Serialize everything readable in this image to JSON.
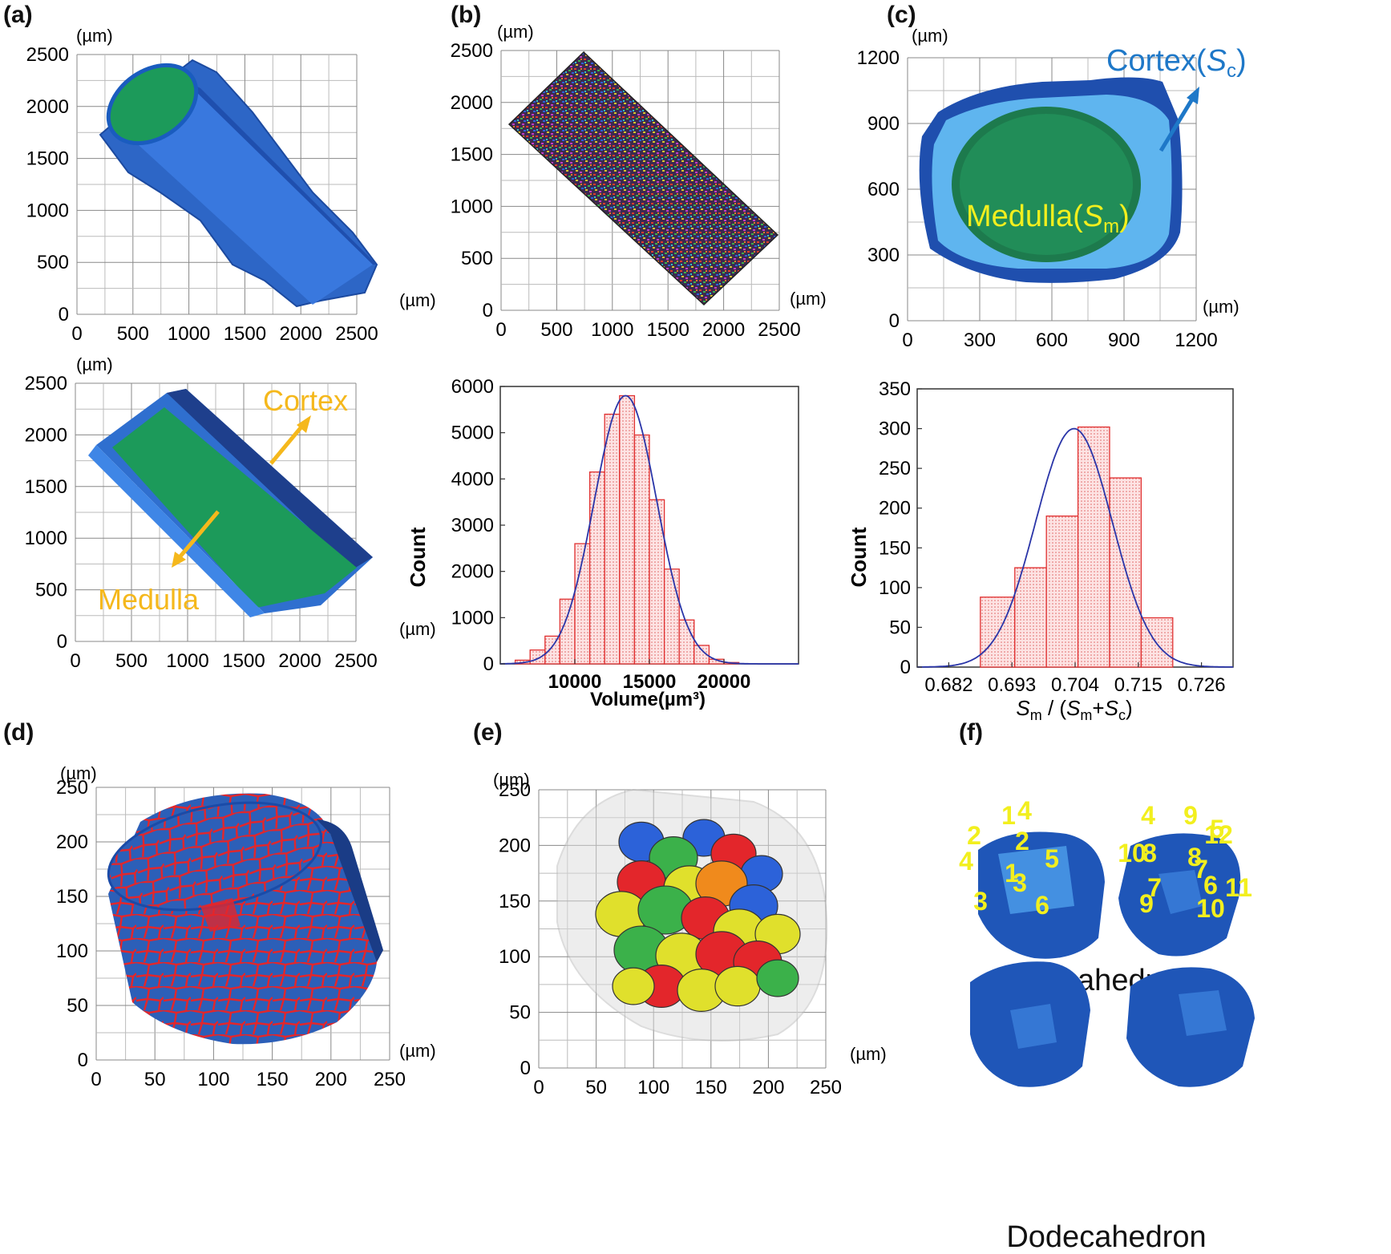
{
  "panels": [
    {
      "label": "(a)"
    },
    {
      "label": "(b)"
    },
    {
      "label": "(c)"
    },
    {
      "label": "(d)"
    },
    {
      "label": "(e)"
    },
    {
      "label": "(f)"
    }
  ],
  "units": {
    "um": "(µm)"
  },
  "a_top": {
    "xticks": [
      "0",
      "500",
      "1000",
      "1500",
      "2000",
      "2500"
    ],
    "yticks": [
      "2500",
      "2000",
      "1500",
      "1000",
      "500",
      "0"
    ],
    "colors": {
      "cortex": "#2f6fcf",
      "medulla": "#1c9a5a"
    }
  },
  "a_bottom": {
    "xticks": [
      "0",
      "500",
      "1000",
      "1500",
      "2000",
      "2500"
    ],
    "yticks": [
      "2500",
      "2000",
      "1500",
      "1000",
      "500",
      "0"
    ],
    "cortex_label": "Cortex",
    "medulla_label": "Medulla",
    "arrow_color": "#f5b81c"
  },
  "b_top": {
    "xticks": [
      "0",
      "500",
      "1000",
      "1500",
      "2000",
      "2500"
    ],
    "yticks": [
      "2500",
      "2000",
      "1500",
      "1000",
      "500",
      "0"
    ]
  },
  "c_top": {
    "xticks": [
      "0",
      "300",
      "600",
      "900",
      "1200"
    ],
    "yticks": [
      "1200",
      "900",
      "600",
      "300",
      "0"
    ],
    "cortex_label": "Cortex(",
    "cortex_sym": "S",
    "cortex_sub": "c",
    "cortex_close": ")",
    "medulla_label": "Medulla(",
    "medulla_sym": "S",
    "medulla_sub": "m",
    "medulla_close": ")"
  },
  "d_panel": {
    "xticks": [
      "0",
      "50",
      "100",
      "150",
      "200",
      "250"
    ],
    "yticks": [
      "250",
      "200",
      "150",
      "100",
      "50",
      "0"
    ]
  },
  "e_panel": {
    "xticks": [
      "0",
      "50",
      "100",
      "150",
      "200",
      "250"
    ],
    "yticks": [
      "250",
      "200",
      "150",
      "100",
      "50",
      "0"
    ]
  },
  "f_panel": {
    "decahedron_caption": "Decahedron",
    "dodecahedron_caption": "Dodecahedron",
    "deca1_faces": [
      "1",
      "2",
      "3",
      "4"
    ],
    "deca2_faces": [
      "4",
      "9",
      "5",
      "10",
      "8",
      "7",
      "6"
    ],
    "dodeca1_faces": [
      "4",
      "2",
      "5",
      "1",
      "3",
      "6"
    ],
    "dodeca2_faces": [
      "12",
      "8",
      "7",
      "11",
      "9",
      "10"
    ],
    "label_color": "#f2ef1e"
  },
  "chart_data": [
    {
      "type": "bar",
      "panel": "(b)",
      "xlabel": "Volume(µm³)",
      "ylabel": "Count",
      "xlim": [
        5000,
        25000
      ],
      "ylim": [
        0,
        6000
      ],
      "xticks": [
        10000,
        15000,
        20000
      ],
      "yticks": [
        0,
        1000,
        2000,
        3000,
        4000,
        5000,
        6000
      ],
      "bin_width": 1000,
      "bins_center": [
        6500,
        7500,
        8500,
        9500,
        10500,
        11500,
        12500,
        13500,
        14500,
        15500,
        16500,
        17500,
        18500,
        19500,
        20500
      ],
      "values": [
        80,
        300,
        600,
        1400,
        2600,
        4150,
        5400,
        5800,
        4950,
        3550,
        2050,
        950,
        400,
        100,
        30
      ],
      "fit": {
        "type": "gaussian",
        "mean": 13400,
        "sd": 2100,
        "peak": 5800
      }
    },
    {
      "type": "bar",
      "panel": "(c)",
      "xlabel_parts": [
        "S",
        "m",
        " / (",
        "S",
        "m",
        "+",
        "S",
        "c",
        ")"
      ],
      "ylabel": "Count",
      "xlim": [
        0.6765,
        0.7315
      ],
      "ylim": [
        0,
        350
      ],
      "xticks": [
        "0.682",
        "0.693",
        "0.704",
        "0.715",
        "0.726"
      ],
      "yticks": [
        0,
        50,
        100,
        150,
        200,
        250,
        300,
        350
      ],
      "bins": [
        [
          0.6875,
          0.6935
        ],
        [
          0.6935,
          0.699
        ],
        [
          0.699,
          0.7045
        ],
        [
          0.7045,
          0.71
        ],
        [
          0.71,
          0.7155
        ],
        [
          0.7155,
          0.721
        ]
      ],
      "values": [
        88,
        125,
        190,
        302,
        238,
        62
      ],
      "fit": {
        "type": "gaussian",
        "mean": 0.7038,
        "sd": 0.0067,
        "peak": 300
      }
    }
  ]
}
